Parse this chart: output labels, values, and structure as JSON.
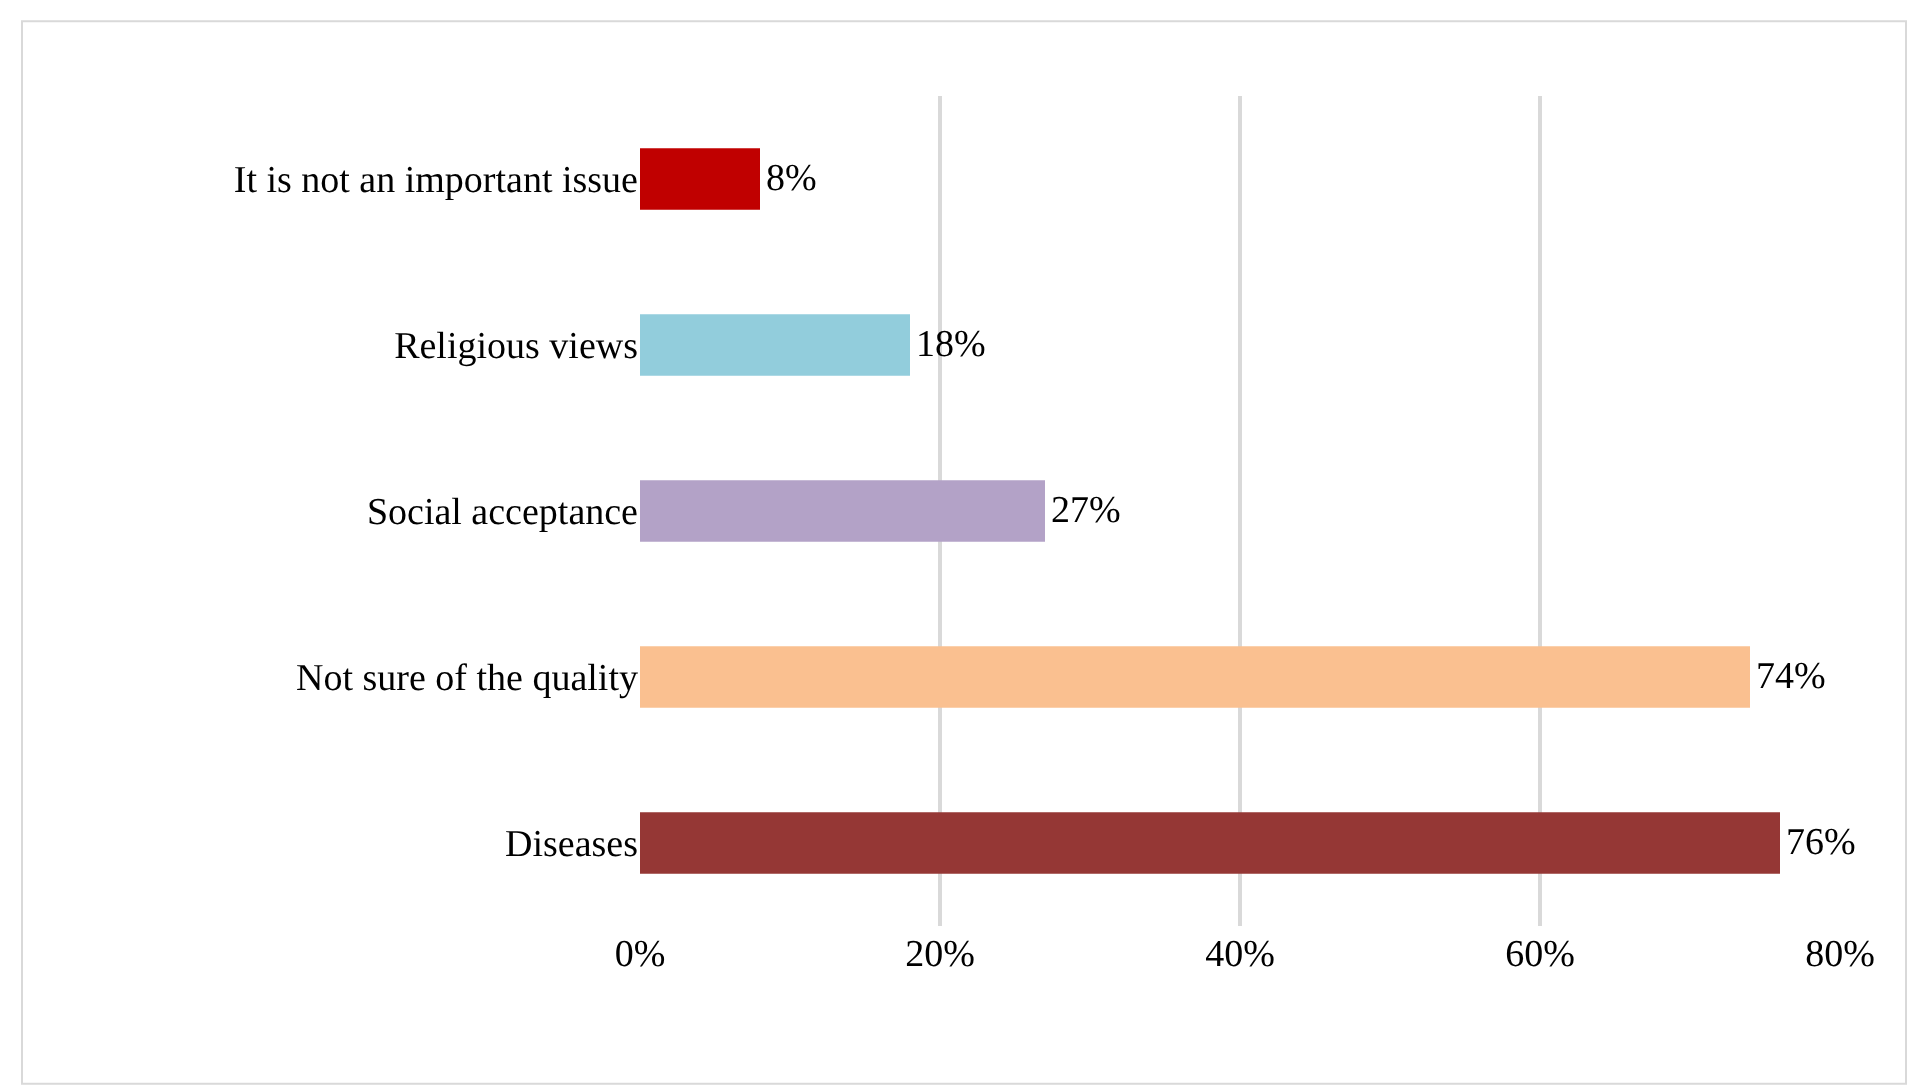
{
  "chart_data": {
    "type": "bar",
    "orientation": "horizontal",
    "categories": [
      "It is not an important issue",
      "Religious views",
      "Social acceptance",
      "Not sure of the quality",
      "Diseases"
    ],
    "values": [
      8,
      18,
      27,
      74,
      76
    ],
    "colors": [
      "#c00000",
      "#92cddc",
      "#b3a2c7",
      "#fac090",
      "#953735"
    ],
    "value_labels": [
      "8%",
      "18%",
      "27%",
      "74%",
      "76%"
    ],
    "xlim": [
      0,
      80
    ],
    "xticks": [
      {
        "value": 0,
        "label": "0%"
      },
      {
        "value": 20,
        "label": "20%"
      },
      {
        "value": 40,
        "label": "40%"
      },
      {
        "value": 60,
        "label": "60%"
      },
      {
        "value": 80,
        "label": "80%"
      }
    ],
    "grid": "x"
  }
}
